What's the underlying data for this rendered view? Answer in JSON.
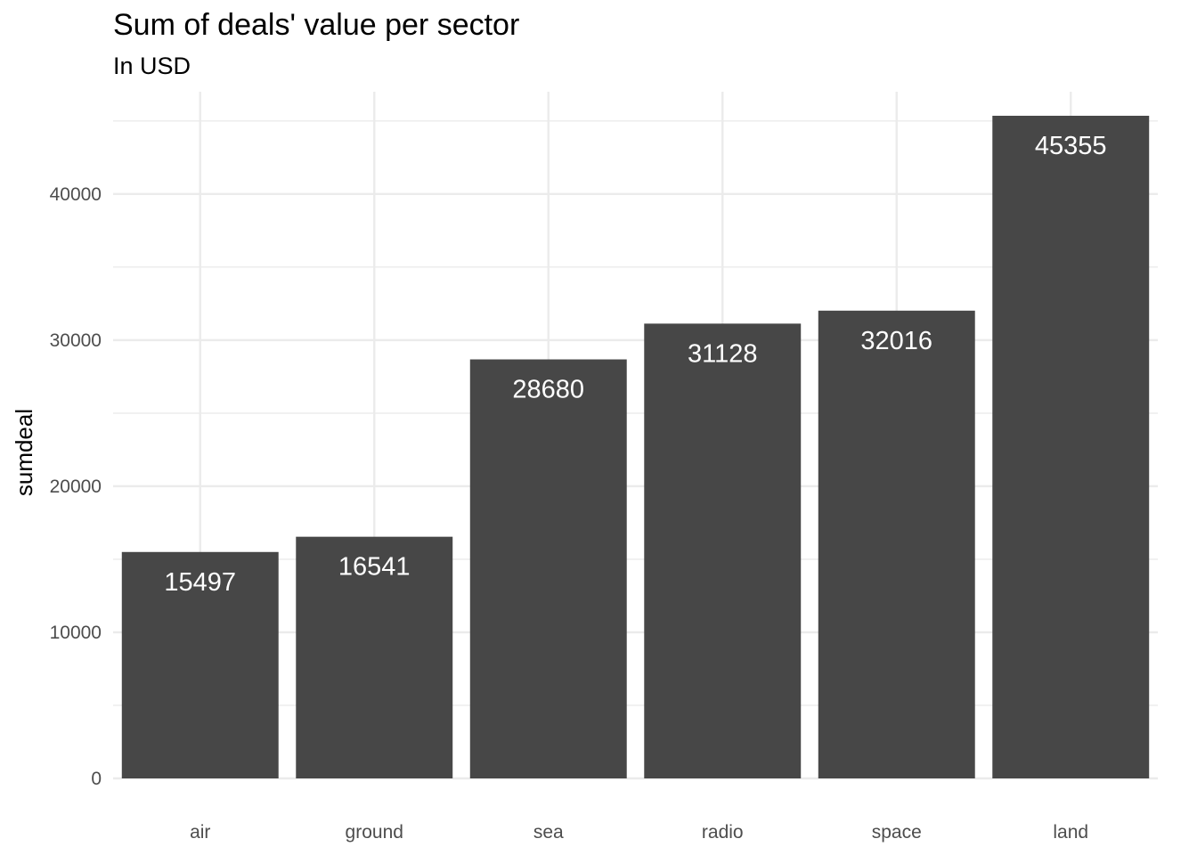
{
  "chart_data": {
    "type": "bar",
    "title": "Sum of deals' value per sector",
    "subtitle": "In USD",
    "xlabel": "",
    "ylabel": "sumdeal",
    "categories": [
      "air",
      "ground",
      "sea",
      "radio",
      "space",
      "land"
    ],
    "values": [
      15497,
      16541,
      28680,
      31128,
      32016,
      45355
    ],
    "data_labels": [
      "15497",
      "16541",
      "28680",
      "31128",
      "32016",
      "45355"
    ],
    "ylim": [
      0,
      47000
    ],
    "y_ticks": [
      0,
      10000,
      20000,
      30000,
      40000
    ],
    "y_tick_labels": [
      "0",
      "10000",
      "20000",
      "30000",
      "40000"
    ],
    "grid": true,
    "legend": "none",
    "colors": {
      "bar": "#474747",
      "grid": "#ebebeb",
      "tick_text": "#4d4d4d",
      "label_text": "#ffffff"
    }
  }
}
